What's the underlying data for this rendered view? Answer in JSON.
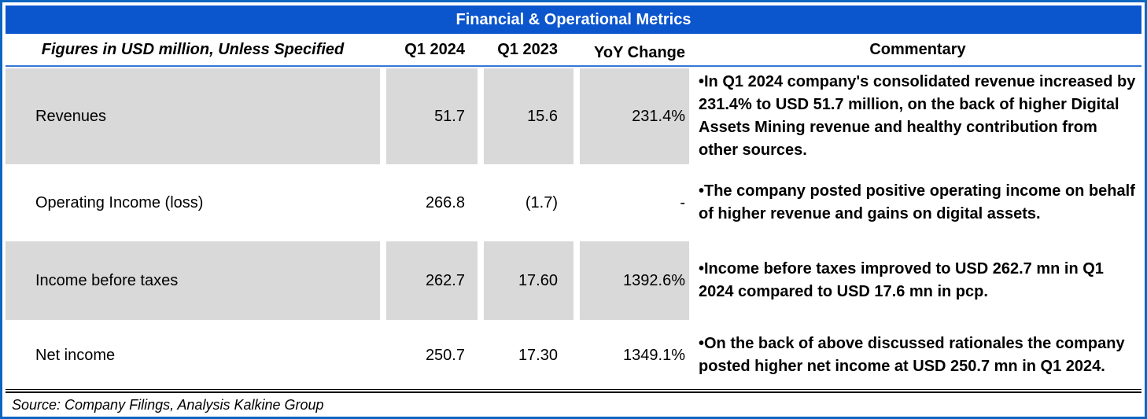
{
  "chart_data": {
    "type": "table",
    "title": "Financial & Operational Metrics",
    "columns": [
      "Figures in USD million, Unless Specified",
      "Q1 2024",
      "Q1 2023",
      "YoY Change",
      "Commentary"
    ],
    "rows": [
      {
        "label": "Revenues",
        "q1_2024": "51.7",
        "q1_2023": "15.6",
        "yoy_change": "231.4%",
        "commentary": "•In Q1 2024 company's consolidated revenue increased by 231.4% to USD 51.7 million, on the back of higher Digital Assets Mining revenue and healthy contribution from other sources."
      },
      {
        "label": "Operating Income (loss)",
        "q1_2024": "266.8",
        "q1_2023": "(1.7)",
        "yoy_change": "-",
        "commentary": "•The company posted positive operating income on behalf of higher revenue and gains on digital assets."
      },
      {
        "label": "Income before taxes",
        "q1_2024": "262.7",
        "q1_2023": "17.60",
        "yoy_change": "1392.6%",
        "commentary": "•Income before taxes improved to USD 262.7 mn in Q1 2024 compared to USD 17.6 mn in pcp."
      },
      {
        "label": "Net income",
        "q1_2024": "250.7",
        "q1_2023": "17.30",
        "yoy_change": "1349.1%",
        "commentary": "•On the back of above discussed rationales the company posted higher net income at USD 250.7 mn in Q1 2024."
      }
    ],
    "source": "Source: Company Filings, Analysis Kalkine Group",
    "layout_hints": {
      "shaded_row_indices": [
        0,
        2
      ],
      "grid": "off",
      "value_alignment": "right"
    }
  },
  "colors": {
    "title_bar_bg": "#0b55cd",
    "title_text": "#ffffff",
    "outer_border": "#0d66c2",
    "header_underline": "#3377d4",
    "row_shade": "#d9d9d9",
    "body_text": "#000000"
  }
}
